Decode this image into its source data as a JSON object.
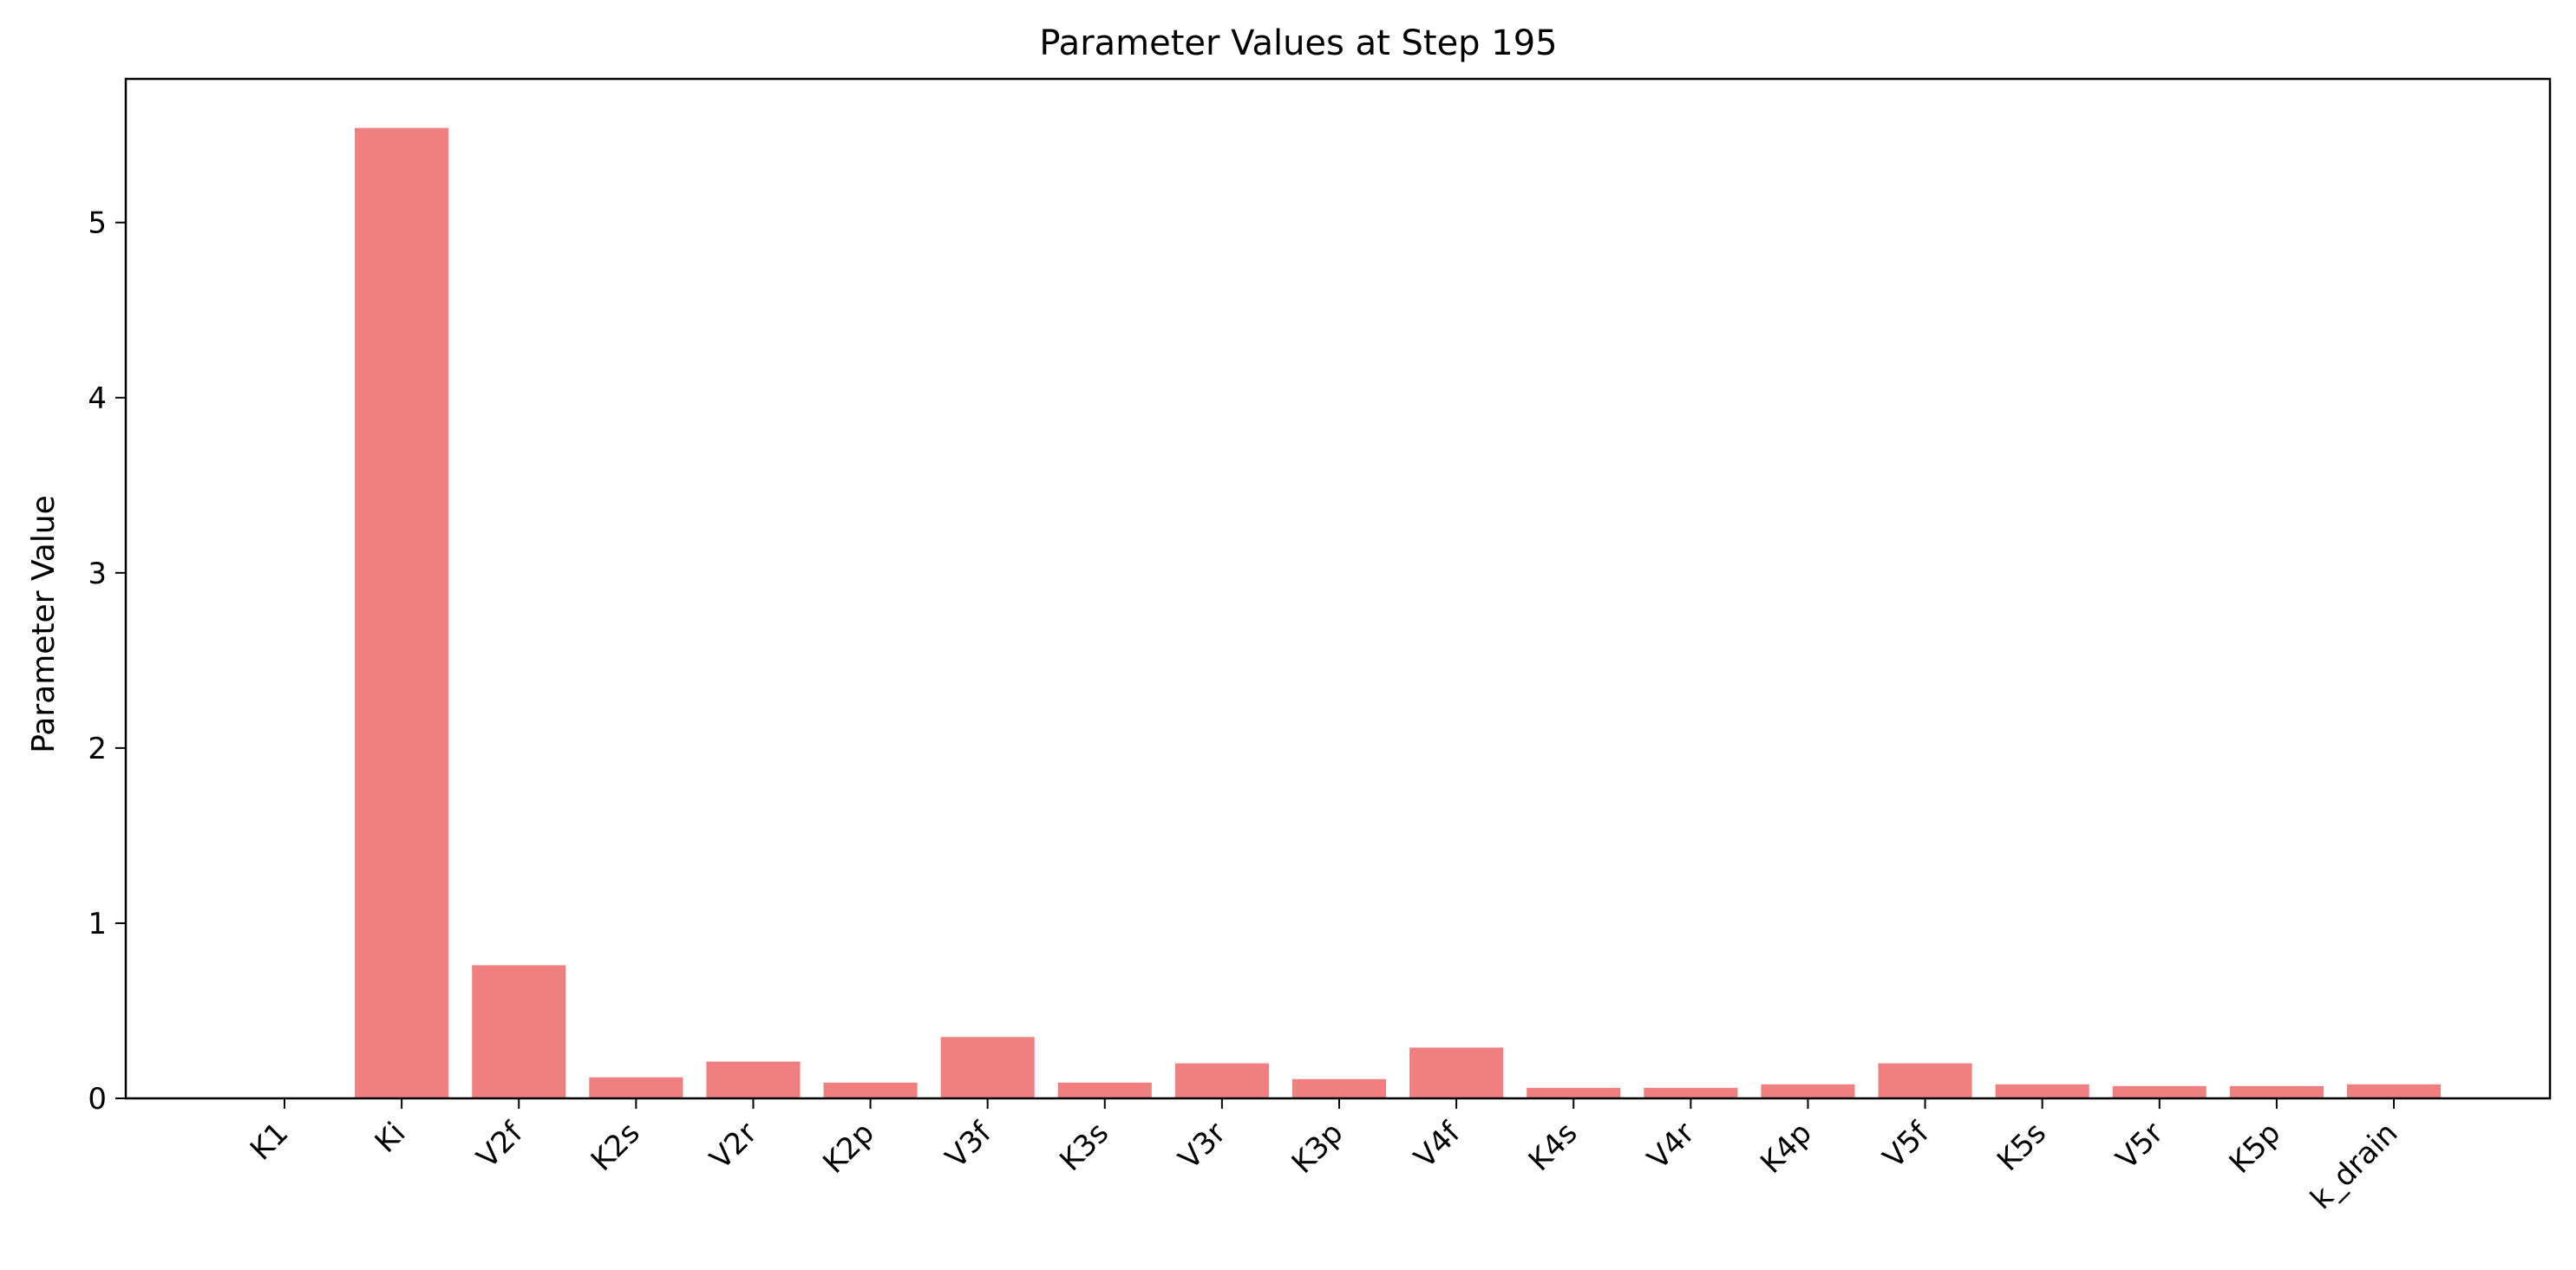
{
  "chart_data": {
    "type": "bar",
    "title": "Parameter Values at Step 195",
    "xlabel": "",
    "ylabel": "Parameter Value",
    "categories": [
      "K1",
      "Ki",
      "V2f",
      "K2s",
      "V2r",
      "K2p",
      "V3f",
      "K3s",
      "V3r",
      "K3p",
      "V4f",
      "K4s",
      "V4r",
      "K4p",
      "V5f",
      "K5s",
      "V5r",
      "K5p",
      "k_drain"
    ],
    "values": [
      0.0,
      5.54,
      0.76,
      0.12,
      0.21,
      0.09,
      0.35,
      0.09,
      0.2,
      0.11,
      0.29,
      0.06,
      0.06,
      0.08,
      0.2,
      0.08,
      0.07,
      0.07,
      0.08
    ],
    "ylim": [
      0,
      5.82
    ],
    "yticks": [
      0,
      1,
      2,
      3,
      4,
      5
    ],
    "grid": false,
    "bar_color": "#f08080"
  }
}
